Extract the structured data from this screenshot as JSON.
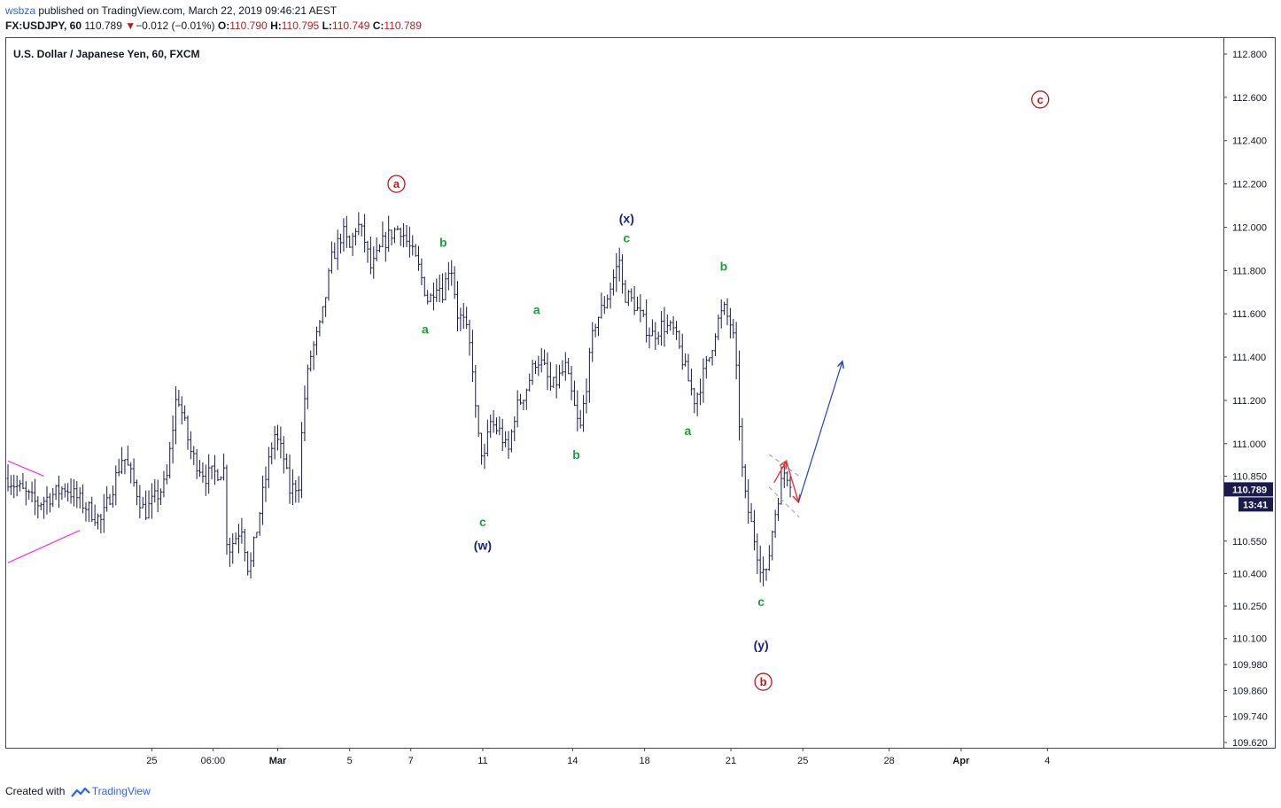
{
  "header": {
    "user": "wsbza",
    "published_text": "published on TradingView.com, March 22, 2019 09:46:21 AEST",
    "symbol": "FX:USDJPY, 60",
    "price": "110.789",
    "change_arrow": "▼",
    "change": "−0.012 (−0.01%)",
    "open_label": "O:",
    "open": "110.790",
    "high_label": "H:",
    "high": "110.795",
    "low_label": "L:",
    "low": "110.749",
    "close_label": "C:",
    "close": "110.789"
  },
  "footer": {
    "created_with": "Created with",
    "brand": "TradingView",
    "logo_icon": "tradingview-logo-icon"
  },
  "colors": {
    "bars": "#1a1a4e",
    "green_label": "#18a33b",
    "red_label": "#b71c1c",
    "blue_label": "#1a237e",
    "magenta": "#ff2de0",
    "arrow_red": "#e53935",
    "arrow_blue": "#1e40d8",
    "channel": "#9e9e9e",
    "price_tag": "#1a1a4e"
  },
  "chart_data": {
    "type": "ohlc",
    "title": "U.S. Dollar / Japanese Yen, 60, FXCM",
    "ylim": [
      109.55,
      112.9
    ],
    "y_ticks": [
      112.8,
      112.6,
      112.4,
      112.2,
      112.0,
      111.8,
      111.6,
      111.4,
      111.2,
      111.0,
      110.85,
      110.55,
      110.4,
      110.25,
      110.1,
      109.98,
      109.86,
      109.74,
      109.62
    ],
    "y_tick_labels": [
      "112.800",
      "112.600",
      "112.400",
      "112.200",
      "112.000",
      "111.800",
      "111.600",
      "111.400",
      "111.200",
      "111.000",
      "110.850",
      "110.550",
      "110.400",
      "110.250",
      "110.100",
      "109.980",
      "109.860",
      "109.740",
      "109.620"
    ],
    "x_tick_labels": [
      {
        "label": "25",
        "day": 2,
        "bold": false
      },
      {
        "label": "06:00",
        "day": 2.85,
        "bold": false
      },
      {
        "label": "Mar",
        "day": 3.75,
        "bold": true
      },
      {
        "label": "5",
        "day": 4.75,
        "bold": false
      },
      {
        "label": "7",
        "day": 5.6,
        "bold": false
      },
      {
        "label": "11",
        "day": 6.6,
        "bold": false
      },
      {
        "label": "14",
        "day": 7.85,
        "bold": false
      },
      {
        "label": "18",
        "day": 8.85,
        "bold": false
      },
      {
        "label": "21",
        "day": 10.05,
        "bold": false
      },
      {
        "label": "25",
        "day": 11.05,
        "bold": false
      },
      {
        "label": "28",
        "day": 12.25,
        "bold": false
      },
      {
        "label": "Apr",
        "day": 13.25,
        "bold": true
      },
      {
        "label": "4",
        "day": 14.45,
        "bold": false
      }
    ],
    "price_path": [
      [
        0.0,
        110.84
      ],
      [
        0.4,
        110.72
      ],
      [
        0.8,
        110.8
      ],
      [
        1.3,
        110.64
      ],
      [
        1.6,
        110.95
      ],
      [
        1.9,
        110.68
      ],
      [
        2.2,
        110.82
      ],
      [
        2.35,
        111.24
      ],
      [
        2.55,
        110.95
      ],
      [
        2.75,
        110.85
      ],
      [
        3.0,
        110.88
      ],
      [
        3.05,
        110.5
      ],
      [
        3.25,
        110.62
      ],
      [
        3.35,
        110.4
      ],
      [
        3.55,
        110.78
      ],
      [
        3.7,
        111.05
      ],
      [
        3.85,
        110.92
      ],
      [
        3.9,
        110.78
      ],
      [
        4.05,
        110.82
      ],
      [
        4.1,
        111.15
      ],
      [
        4.2,
        111.4
      ],
      [
        4.35,
        111.55
      ],
      [
        4.5,
        111.85
      ],
      [
        4.65,
        111.98
      ],
      [
        4.75,
        111.9
      ],
      [
        4.85,
        112.02
      ],
      [
        4.95,
        111.95
      ],
      [
        5.05,
        111.8
      ],
      [
        5.2,
        111.92
      ],
      [
        5.35,
        111.98
      ],
      [
        5.45,
        112.0
      ],
      [
        5.52,
        111.95
      ],
      [
        5.7,
        111.82
      ],
      [
        5.85,
        111.65
      ],
      [
        5.95,
        111.75
      ],
      [
        6.05,
        111.7
      ],
      [
        6.15,
        111.85
      ],
      [
        6.25,
        111.6
      ],
      [
        6.35,
        111.55
      ],
      [
        6.45,
        111.4
      ],
      [
        6.52,
        111.05
      ],
      [
        6.62,
        110.92
      ],
      [
        6.7,
        111.1
      ],
      [
        6.85,
        111.05
      ],
      [
        6.95,
        110.95
      ],
      [
        7.05,
        111.15
      ],
      [
        7.2,
        111.25
      ],
      [
        7.35,
        111.4
      ],
      [
        7.45,
        111.35
      ],
      [
        7.55,
        111.25
      ],
      [
        7.65,
        111.3
      ],
      [
        7.75,
        111.35
      ],
      [
        7.85,
        111.2
      ],
      [
        7.95,
        111.05
      ],
      [
        8.05,
        111.3
      ],
      [
        8.15,
        111.55
      ],
      [
        8.3,
        111.65
      ],
      [
        8.4,
        111.75
      ],
      [
        8.5,
        111.85
      ],
      [
        8.55,
        111.7
      ],
      [
        8.7,
        111.65
      ],
      [
        8.85,
        111.55
      ],
      [
        8.95,
        111.5
      ],
      [
        9.1,
        111.55
      ],
      [
        9.25,
        111.52
      ],
      [
        9.35,
        111.42
      ],
      [
        9.45,
        111.3
      ],
      [
        9.55,
        111.2
      ],
      [
        9.65,
        111.3
      ],
      [
        9.75,
        111.4
      ],
      [
        9.85,
        111.55
      ],
      [
        9.95,
        111.62
      ],
      [
        10.05,
        111.55
      ],
      [
        10.1,
        111.45
      ],
      [
        10.15,
        111.2
      ],
      [
        10.2,
        110.9
      ],
      [
        10.25,
        110.75
      ],
      [
        10.35,
        110.6
      ],
      [
        10.45,
        110.45
      ],
      [
        10.55,
        110.38
      ],
      [
        10.6,
        110.55
      ],
      [
        10.7,
        110.75
      ],
      [
        10.8,
        110.88
      ],
      [
        10.9,
        110.82
      ]
    ],
    "waves": [
      {
        "text": "a",
        "day": 5.4,
        "price": 112.2,
        "style": "circle-red"
      },
      {
        "text": "b",
        "day": 10.5,
        "price": 109.9,
        "style": "circle-red"
      },
      {
        "text": "c",
        "day": 14.35,
        "price": 112.59,
        "style": "circle-red"
      },
      {
        "text": "(w)",
        "day": 6.6,
        "price": 110.53,
        "style": "blue"
      },
      {
        "text": "(x)",
        "day": 8.6,
        "price": 112.04,
        "style": "blue"
      },
      {
        "text": "(y)",
        "day": 10.47,
        "price": 110.07,
        "style": "blue"
      },
      {
        "text": "c",
        "day": 6.6,
        "price": 110.64,
        "style": "green"
      },
      {
        "text": "a",
        "day": 5.8,
        "price": 111.53,
        "style": "green"
      },
      {
        "text": "b",
        "day": 6.05,
        "price": 111.93,
        "style": "green"
      },
      {
        "text": "a",
        "day": 7.35,
        "price": 111.62,
        "style": "green"
      },
      {
        "text": "b",
        "day": 7.9,
        "price": 110.95,
        "style": "green"
      },
      {
        "text": "c",
        "day": 8.6,
        "price": 111.95,
        "style": "green"
      },
      {
        "text": "a",
        "day": 9.45,
        "price": 111.06,
        "style": "green"
      },
      {
        "text": "b",
        "day": 9.95,
        "price": 111.82,
        "style": "green"
      },
      {
        "text": "c",
        "day": 10.47,
        "price": 110.27,
        "style": "green"
      }
    ],
    "magenta_triangle": [
      [
        0.0,
        110.92
      ],
      [
        0.5,
        110.85
      ],
      [
        1.0,
        110.6
      ],
      [
        0.0,
        110.45
      ]
    ],
    "projection": {
      "channel_upper": [
        [
          10.58,
          110.95
        ],
        [
          11.0,
          110.85
        ]
      ],
      "channel_lower": [
        [
          10.58,
          110.8
        ],
        [
          11.0,
          110.66
        ]
      ],
      "red_path": [
        [
          10.65,
          110.82
        ],
        [
          10.82,
          110.92
        ],
        [
          10.99,
          110.73
        ]
      ],
      "blue_path": [
        [
          10.99,
          110.73
        ],
        [
          11.6,
          111.38
        ]
      ]
    },
    "current_price": {
      "value": 110.789,
      "label": "110.789",
      "countdown": "13:41"
    },
    "grid": false,
    "legend": "none"
  }
}
